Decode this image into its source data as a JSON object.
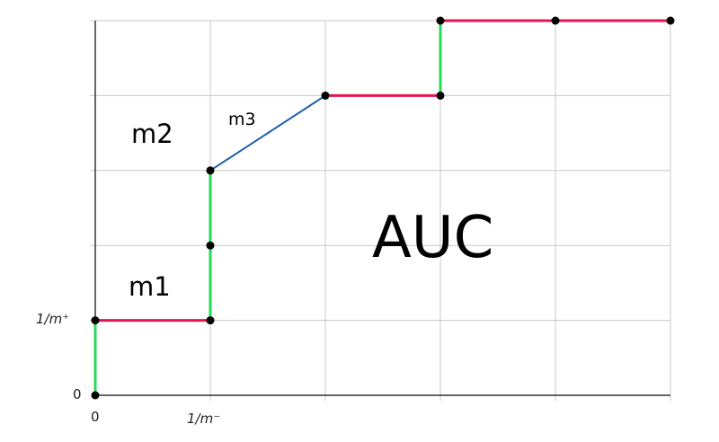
{
  "axes": {
    "x_tick_labels": [
      "0",
      "1/m⁻"
    ],
    "y_tick_labels": [
      "0",
      "1/m⁺"
    ]
  },
  "labels": {
    "m1": "m1",
    "m2": "m2",
    "m3": "m3",
    "auc": "AUC"
  },
  "curve_points": [
    [
      0,
      0
    ],
    [
      0,
      1
    ],
    [
      1,
      1
    ],
    [
      1,
      2
    ],
    [
      1,
      3
    ],
    [
      2,
      4
    ],
    [
      3,
      4
    ],
    [
      3,
      5
    ],
    [
      4,
      5
    ],
    [
      5,
      5
    ]
  ],
  "segment_colors": [
    "green",
    "red",
    "green",
    "green",
    "blue",
    "red",
    "green",
    "red",
    "red"
  ],
  "colors": {
    "red": "#e8124f",
    "green": "#22dd55",
    "blue": "#1f5fa8",
    "grid": "#c8c8c8",
    "axis": "#333333"
  }
}
